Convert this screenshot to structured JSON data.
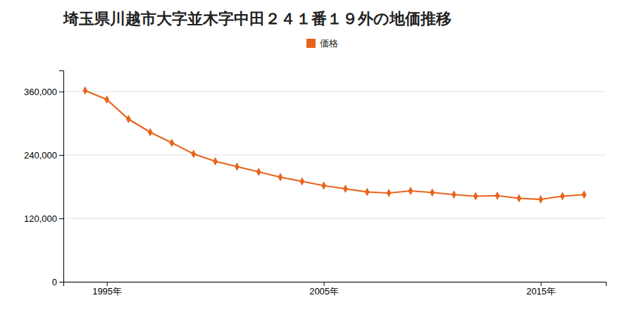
{
  "chart_data": {
    "type": "line",
    "title": "埼玉県川越市大字並木字中田２４１番１９外の地価推移",
    "x": [
      1994,
      1995,
      1996,
      1997,
      1998,
      1999,
      2000,
      2001,
      2002,
      2003,
      2004,
      2005,
      2006,
      2007,
      2008,
      2009,
      2010,
      2011,
      2012,
      2013,
      2014,
      2015,
      2016,
      2017
    ],
    "series": [
      {
        "name": "価格",
        "color": "#e8641e",
        "marker": "diamond",
        "values": [
          362000,
          345000,
          308000,
          283000,
          263000,
          242000,
          228000,
          218000,
          208000,
          198000,
          190000,
          182000,
          176000,
          170000,
          168000,
          172000,
          169000,
          165000,
          162000,
          163000,
          158000,
          156000,
          162000,
          165000
        ]
      }
    ],
    "xlim": [
      1993,
      2018
    ],
    "xticks": [
      {
        "value": 1995,
        "label": "1995年"
      },
      {
        "value": 2005,
        "label": "2005年"
      },
      {
        "value": 2015,
        "label": "2015年"
      }
    ],
    "ylim": [
      0,
      400000
    ],
    "yticks": [
      0,
      {
        "value": 120000,
        "label": "120,000"
      },
      {
        "value": 240000,
        "label": "240,000"
      },
      {
        "value": 360000,
        "label": "360,000"
      }
    ],
    "grid": true,
    "legend": "top"
  }
}
